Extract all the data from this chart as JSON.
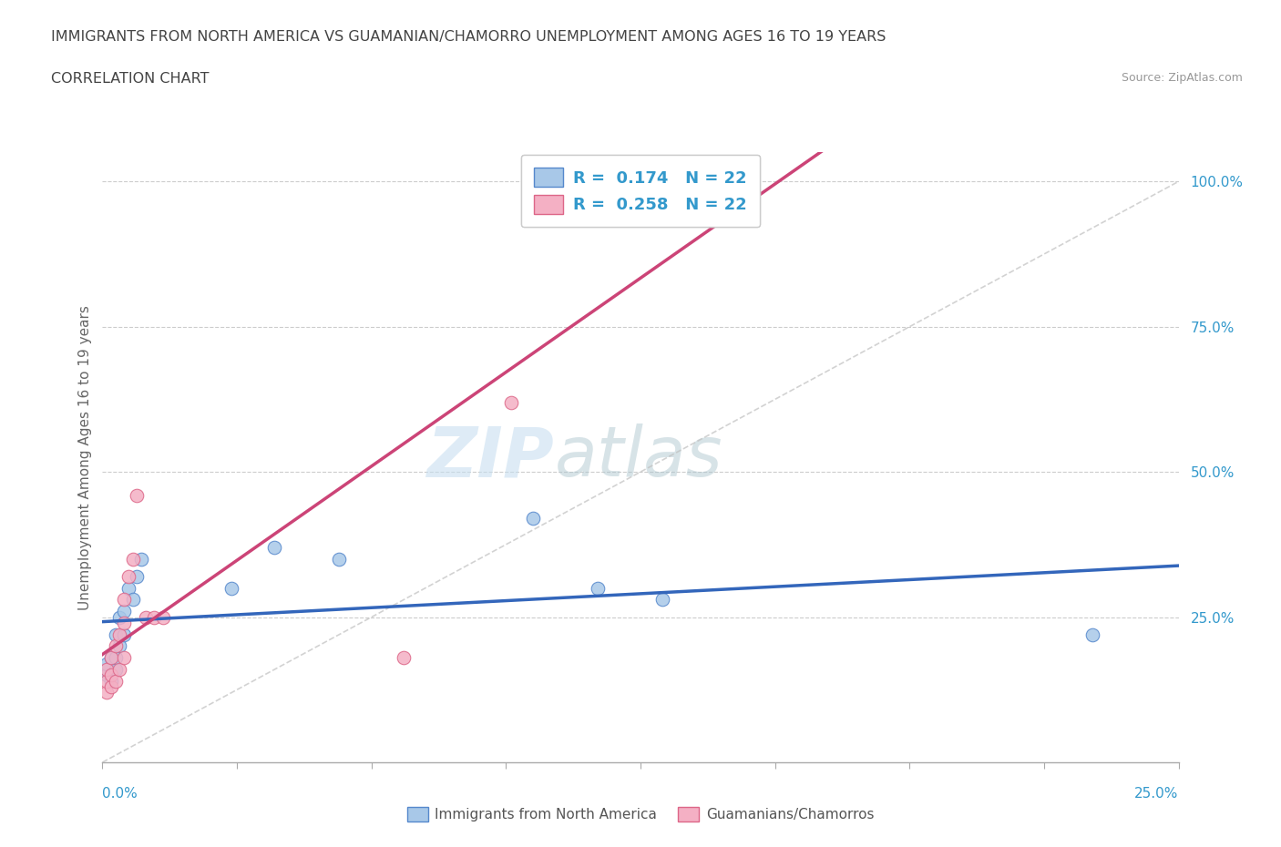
{
  "title": "IMMIGRANTS FROM NORTH AMERICA VS GUAMANIAN/CHAMORRO UNEMPLOYMENT AMONG AGES 16 TO 19 YEARS",
  "subtitle": "CORRELATION CHART",
  "source": "Source: ZipAtlas.com",
  "ylabel": "Unemployment Among Ages 16 to 19 years",
  "legend_label_blue": "Immigrants from North America",
  "legend_label_pink": "Guamanians/Chamorros",
  "legend_blue_r": "0.174",
  "legend_blue_n": "22",
  "legend_pink_r": "0.258",
  "legend_pink_n": "22",
  "blue_color": "#a8c8e8",
  "pink_color": "#f4b0c4",
  "blue_edge": "#5588cc",
  "pink_edge": "#dd6688",
  "blue_line": "#3366bb",
  "pink_line": "#cc4477",
  "gray_line": "#c0c0c0",
  "text_blue": "#3399cc",
  "text_dark": "#444444",
  "text_gray": "#999999",
  "blue_scatter_x": [
    0.001,
    0.001,
    0.002,
    0.002,
    0.003,
    0.003,
    0.003,
    0.004,
    0.004,
    0.005,
    0.005,
    0.006,
    0.007,
    0.008,
    0.009,
    0.03,
    0.04,
    0.055,
    0.1,
    0.115,
    0.13,
    0.23
  ],
  "blue_scatter_y": [
    0.15,
    0.17,
    0.14,
    0.18,
    0.16,
    0.18,
    0.22,
    0.2,
    0.25,
    0.22,
    0.26,
    0.3,
    0.28,
    0.32,
    0.35,
    0.3,
    0.37,
    0.35,
    0.42,
    0.3,
    0.28,
    0.22
  ],
  "pink_scatter_x": [
    0.001,
    0.001,
    0.001,
    0.002,
    0.002,
    0.002,
    0.003,
    0.003,
    0.004,
    0.004,
    0.005,
    0.005,
    0.005,
    0.006,
    0.007,
    0.008,
    0.01,
    0.012,
    0.014,
    0.07,
    0.095,
    0.105
  ],
  "pink_scatter_y": [
    0.12,
    0.14,
    0.16,
    0.13,
    0.15,
    0.18,
    0.14,
    0.2,
    0.16,
    0.22,
    0.18,
    0.24,
    0.28,
    0.32,
    0.35,
    0.46,
    0.25,
    0.25,
    0.25,
    0.18,
    0.62,
    1.0
  ],
  "xmin": 0.0,
  "xmax": 0.25,
  "ymin": 0.0,
  "ymax": 1.05,
  "yticks": [
    0.0,
    0.25,
    0.5,
    0.75,
    1.0
  ],
  "ytick_labels": [
    "",
    "25.0%",
    "50.0%",
    "75.0%",
    "100.0%"
  ],
  "gridline_y": [
    0.25,
    0.5,
    0.75,
    1.0
  ],
  "xtick_count": 9
}
